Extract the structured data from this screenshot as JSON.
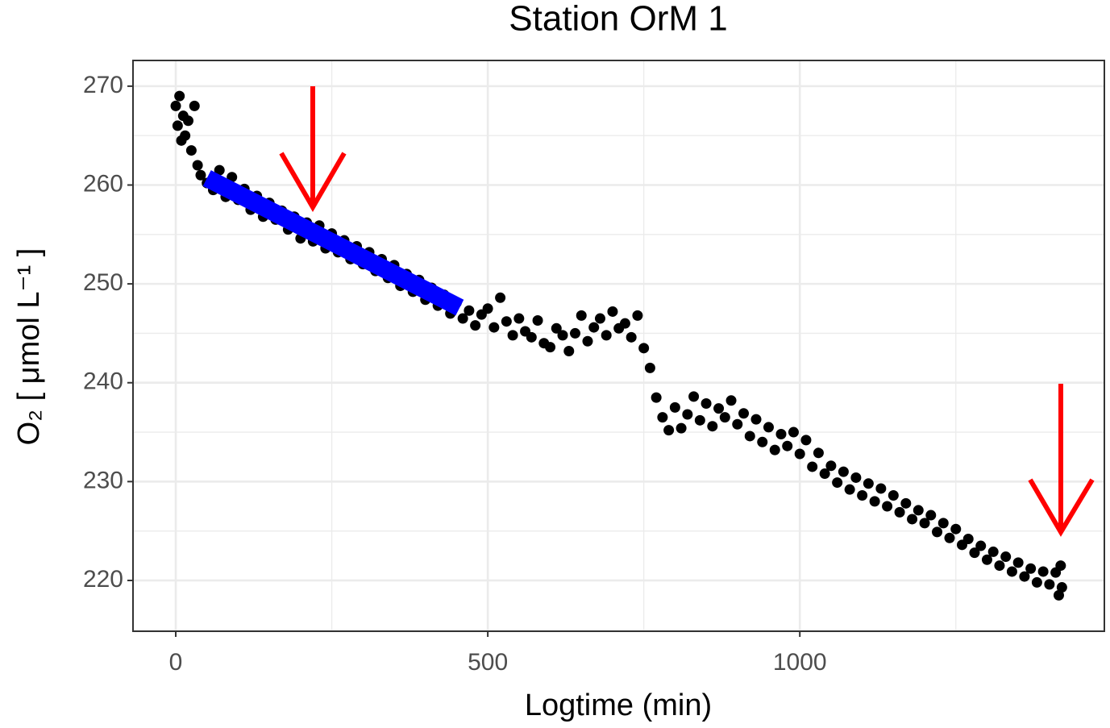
{
  "chart_data": {
    "type": "scatter",
    "title": "Station OrM 1",
    "x_label": "Logtime (min)",
    "y_label": "O₂ [ μmol L⁻¹ ]",
    "color": "#000000",
    "x": [
      0,
      3,
      6,
      9,
      12,
      15,
      20,
      25,
      30,
      35,
      40,
      50,
      60,
      70,
      80,
      90,
      100,
      110,
      120,
      130,
      140,
      150,
      160,
      170,
      180,
      190,
      200,
      210,
      220,
      230,
      240,
      250,
      260,
      270,
      280,
      290,
      300,
      310,
      320,
      330,
      340,
      350,
      360,
      370,
      380,
      390,
      400,
      410,
      420,
      430,
      440,
      450,
      460,
      470,
      480,
      490,
      500,
      510,
      520,
      530,
      540,
      550,
      560,
      570,
      580,
      590,
      600,
      610,
      620,
      630,
      640,
      650,
      660,
      670,
      680,
      690,
      700,
      710,
      720,
      730,
      740,
      750,
      760,
      770,
      780,
      790,
      800,
      810,
      820,
      830,
      840,
      850,
      860,
      870,
      880,
      890,
      900,
      910,
      920,
      930,
      940,
      950,
      960,
      970,
      980,
      990,
      1000,
      1010,
      1020,
      1030,
      1040,
      1050,
      1060,
      1070,
      1080,
      1090,
      1100,
      1110,
      1120,
      1130,
      1140,
      1150,
      1160,
      1170,
      1180,
      1190,
      1200,
      1210,
      1220,
      1230,
      1240,
      1250,
      1260,
      1270,
      1280,
      1290,
      1300,
      1310,
      1320,
      1330,
      1340,
      1350,
      1360,
      1370,
      1380,
      1390,
      1400,
      1410,
      1415,
      1418,
      1420
    ],
    "values": [
      268,
      266,
      269,
      264.5,
      267,
      265,
      266.5,
      263.5,
      268,
      262,
      261,
      260.2,
      259.5,
      261.5,
      258.8,
      260.8,
      258.5,
      259.6,
      257.5,
      258.9,
      256.8,
      258.2,
      256.5,
      257.4,
      255.5,
      256.8,
      254.6,
      256.2,
      254.3,
      255.9,
      253.6,
      255.1,
      253.2,
      254.4,
      252.5,
      253.8,
      252.0,
      253.2,
      251.3,
      252.5,
      250.6,
      251.9,
      249.8,
      251.0,
      249.2,
      250.4,
      248.4,
      249.6,
      247.8,
      248.9,
      247.0,
      248.1,
      246.5,
      247.3,
      245.8,
      246.9,
      247.5,
      245.6,
      248.6,
      246.2,
      244.8,
      246.5,
      245.2,
      244.6,
      246.3,
      244.0,
      243.6,
      245.5,
      244.8,
      243.2,
      245.0,
      246.8,
      244.2,
      245.6,
      246.5,
      244.8,
      247.2,
      245.5,
      246.0,
      244.6,
      246.8,
      243.5,
      241.5,
      238.5,
      236.5,
      235.2,
      237.5,
      235.4,
      236.8,
      238.6,
      236.2,
      237.9,
      235.6,
      237.4,
      236.5,
      238.2,
      235.8,
      236.9,
      234.6,
      236.3,
      234.0,
      235.5,
      233.2,
      234.8,
      233.6,
      235.0,
      232.8,
      234.2,
      231.5,
      232.9,
      230.8,
      231.6,
      229.9,
      231.0,
      229.2,
      230.4,
      228.6,
      229.8,
      228.0,
      229.3,
      227.5,
      228.6,
      226.9,
      227.8,
      226.2,
      227.1,
      225.8,
      226.6,
      224.9,
      225.8,
      224.3,
      225.2,
      223.6,
      224.2,
      222.8,
      223.5,
      222.1,
      222.9,
      221.5,
      222.4,
      220.9,
      221.8,
      220.4,
      221.2,
      219.8,
      220.9,
      219.6,
      220.8,
      218.5,
      221.5,
      219.3
    ],
    "fit": {
      "x": [
        50,
        455
      ],
      "values": [
        260.7,
        247.6
      ],
      "color": "#0000ff"
    },
    "xlim": [
      -68.5,
      1488
    ],
    "ylim": [
      214.86,
      272.6
    ],
    "xticks": [
      0,
      500,
      1000
    ],
    "yticks": [
      220,
      230,
      240,
      250,
      260,
      270
    ],
    "grid": true
  }
}
